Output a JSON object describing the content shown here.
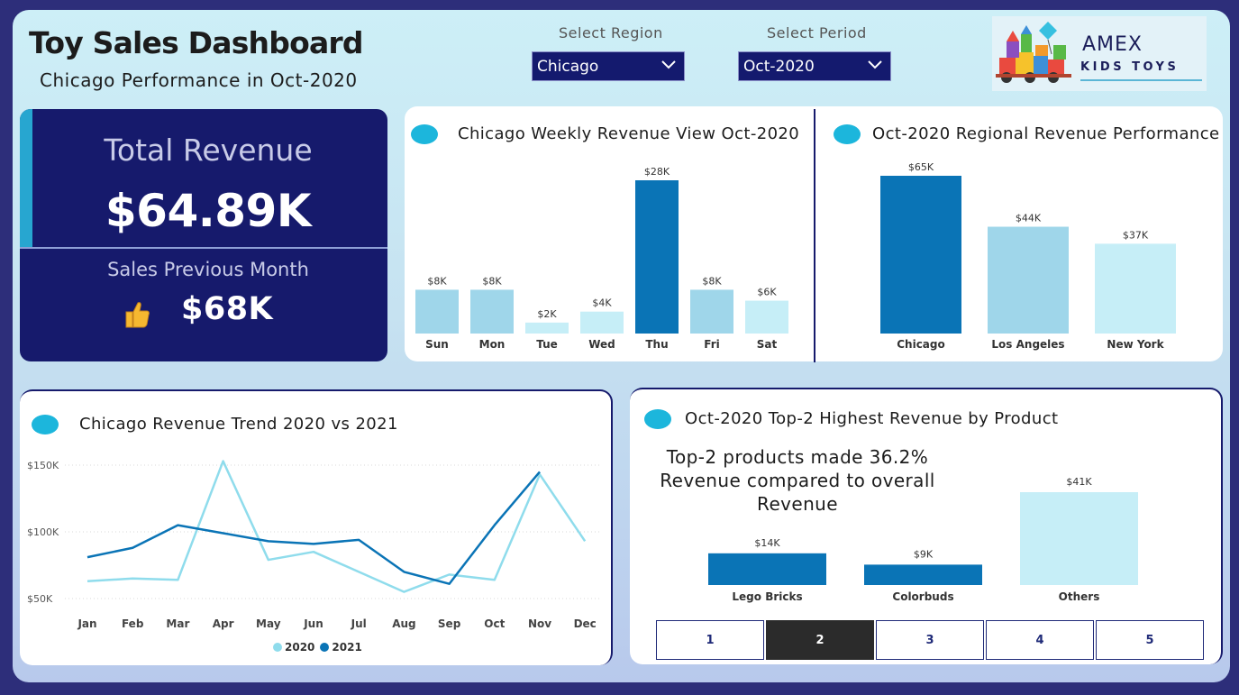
{
  "header": {
    "title": "Toy Sales Dashboard",
    "subtitle": "Chicago Performance in Oct-2020"
  },
  "filters": {
    "region_label": "Select Region",
    "region_value": "Chicago",
    "period_label": "Select Period",
    "period_value": "Oct-2020"
  },
  "logo": {
    "line1": "AMEX",
    "line2": "KIDS TOYS"
  },
  "kpi": {
    "total_label": "Total Revenue",
    "total_value": "$64.89K",
    "prev_label": "Sales Previous Month",
    "prev_value": "$68K",
    "prev_icon": "thumbs-up-icon"
  },
  "colors": {
    "navy": "#161a6c",
    "accent": "#1cb6dc",
    "dark_bar": "#0a74b6",
    "mid_bar": "#9fd6ea",
    "light_bar": "#c6eef7",
    "line_2020": "#8fdcec",
    "line_2021": "#0a74b6"
  },
  "weekly": {
    "title": "Chicago Weekly Revenue View Oct-2020",
    "chart_data": {
      "type": "bar",
      "categories": [
        "Sun",
        "Mon",
        "Tue",
        "Wed",
        "Thu",
        "Fri",
        "Sat"
      ],
      "values": [
        8,
        8,
        2,
        4,
        28,
        8,
        6
      ],
      "labels": [
        "$8K",
        "$8K",
        "$2K",
        "$4K",
        "$28K",
        "$8K",
        "$6K"
      ],
      "highlight": "Thu"
    }
  },
  "regional": {
    "title": "Oct-2020 Regional Revenue Performance",
    "chart_data": {
      "type": "bar",
      "categories": [
        "Chicago",
        "Los Angeles",
        "New York"
      ],
      "values": [
        65,
        44,
        37
      ],
      "labels": [
        "$65K",
        "$44K",
        "$37K"
      ],
      "highlight": "Chicago"
    }
  },
  "trend": {
    "title": "Chicago Revenue Trend 2020 vs 2021",
    "chart_data": {
      "type": "line",
      "x": [
        "Jan",
        "Feb",
        "Mar",
        "Apr",
        "May",
        "Jun",
        "Jul",
        "Aug",
        "Sep",
        "Oct",
        "Nov",
        "Dec"
      ],
      "y_ticks": [
        "$150K",
        "$100K",
        "$50K"
      ],
      "ylim": [
        50,
        150
      ],
      "series": [
        {
          "name": "2020",
          "values": [
            63,
            65,
            64,
            153,
            79,
            85,
            70,
            55,
            68,
            64,
            143,
            93
          ]
        },
        {
          "name": "2021",
          "values": [
            81,
            88,
            105,
            99,
            93,
            91,
            94,
            70,
            61,
            105,
            145,
            null
          ]
        }
      ],
      "legend": "bottom"
    }
  },
  "products": {
    "title": "Oct-2020 Top-2 Highest Revenue by Product",
    "insight": "Top-2 products made 36.2% Revenue compared to overall Revenue",
    "chart_data": {
      "type": "bar",
      "categories": [
        "Lego Bricks",
        "Colorbuds",
        "Others"
      ],
      "values": [
        14,
        9,
        41
      ],
      "labels": [
        "$14K",
        "$9K",
        "$41K"
      ]
    },
    "pages": [
      "1",
      "2",
      "3",
      "4",
      "5"
    ],
    "active_page": "2"
  }
}
